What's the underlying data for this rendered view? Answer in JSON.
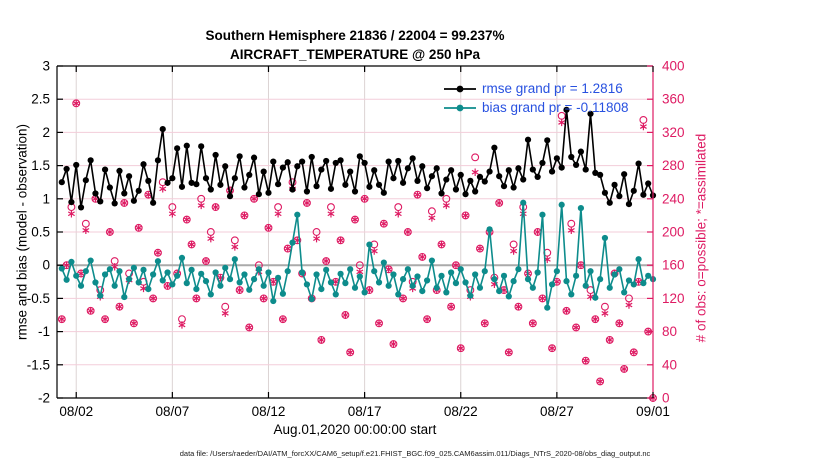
{
  "title": {
    "line1": "Southern Hemisphere 21836 / 22004 = 99.237%",
    "line2": "AIRCRAFT_TEMPERATURE @ 250 hPa"
  },
  "axes": {
    "left_label": "rmse and bias (model - observation)",
    "right_label": "# of obs: o=possible; *=assimilated",
    "x_label": "Aug.01,2020 00:00:00 start"
  },
  "footer": "data file: /Users/raeder/DAI/ATM_forcXX/CAM6_setup/f.e21.FHIST_BGC.f09_025.CAM6assim.011/Diags_NTrS_2020-08/obs_diag_output.nc",
  "colors": {
    "rmse": "#000000",
    "bias": "#0d8c8c",
    "obs": "#de1b63",
    "legend_text": "#2851e0",
    "right_axis": "#de1b63",
    "zero_line": "#aaaaaa",
    "grid_horizontal": "#f3cdda",
    "grid_vertical": "#dcd4d4",
    "frame": "#000000"
  },
  "chart_data": {
    "type": "line",
    "title": "Southern Hemisphere 21836 / 22004 = 99.237%  |  AIRCRAFT_TEMPERATURE @ 250 hPa",
    "xlabel": "Aug.01,2020 00:00:00 start",
    "ylabel_left": "rmse and bias (model - observation)",
    "ylabel_right": "# of obs: o=possible; *=assimilated",
    "x_unit": "day of August 2020 (32 = Sep 1), points every 6 h",
    "xlim": [
      1,
      32
    ],
    "x_start_day": 1.25,
    "x_step_days": 0.25,
    "xticks": [
      {
        "day": 2,
        "label": "08/02"
      },
      {
        "day": 7,
        "label": "08/07"
      },
      {
        "day": 12,
        "label": "08/12"
      },
      {
        "day": 17,
        "label": "08/17"
      },
      {
        "day": 22,
        "label": "08/22"
      },
      {
        "day": 27,
        "label": "08/27"
      },
      {
        "day": 32,
        "label": "09/01"
      }
    ],
    "left_ylim": [
      -2,
      3
    ],
    "left_yticks": [
      3,
      2.5,
      2,
      1.5,
      1,
      0.5,
      0,
      -0.5,
      -1,
      -1.5,
      -2
    ],
    "right_ylim": [
      0,
      400
    ],
    "right_yticks": [
      0,
      40,
      80,
      120,
      160,
      200,
      240,
      280,
      320,
      360,
      400
    ],
    "grid": true,
    "legend_position": "upper-right-inside",
    "series": [
      {
        "name": "rmse",
        "legend": "rmse grand pr = 1.2816",
        "color": "#000000",
        "axis": "left",
        "marker": "filled-circle",
        "values": [
          1.25,
          1.45,
          0.95,
          1.51,
          0.87,
          1.28,
          1.58,
          1.08,
          0.96,
          1.44,
          1.17,
          0.93,
          1.42,
          1.08,
          1.34,
          0.97,
          1.12,
          1.52,
          1.27,
          0.94,
          1.58,
          2.05,
          1.24,
          1.31,
          1.76,
          1.18,
          1.8,
          1.24,
          1.22,
          1.79,
          1.31,
          1.14,
          1.66,
          1.21,
          1.49,
          1.04,
          1.31,
          1.64,
          1.17,
          1.36,
          1.62,
          1.07,
          1.41,
          1.09,
          1.56,
          1.22,
          1.47,
          1.55,
          1.14,
          1.49,
          1.56,
          1.11,
          1.63,
          1.19,
          1.44,
          1.57,
          1.15,
          1.54,
          1.58,
          1.21,
          1.41,
          1.11,
          1.64,
          1.54,
          1.18,
          1.43,
          1.21,
          1.09,
          1.56,
          1.31,
          1.57,
          1.24,
          1.46,
          1.61,
          1.27,
          1.49,
          1.16,
          1.34,
          1.46,
          1.08,
          1.29,
          1.43,
          1.14,
          1.36,
          1.07,
          1.27,
          1.11,
          1.33,
          1.26,
          1.41,
          1.77,
          1.34,
          1.19,
          1.43,
          1.17,
          1.46,
          1.29,
          1.89,
          1.44,
          1.33,
          1.54,
          1.88,
          1.41,
          1.61,
          1.47,
          2.34,
          1.63,
          1.51,
          1.71,
          1.44,
          2.28,
          1.39,
          1.36,
          1.09,
          0.94,
          1.21,
          1.04,
          1.37,
          0.92,
          1.12,
          1.53,
          1.06,
          1.23,
          1.05
        ]
      },
      {
        "name": "bias",
        "legend": "bias grand pr = -0.11808",
        "color": "#0d8c8c",
        "axis": "left",
        "marker": "filled-circle",
        "values": [
          -0.05,
          -0.22,
          0.05,
          -0.16,
          -0.31,
          -0.09,
          0.07,
          -0.26,
          -0.46,
          -0.14,
          -0.06,
          -0.31,
          -0.09,
          -0.48,
          -0.21,
          -0.04,
          -0.26,
          -0.07,
          -0.36,
          -0.14,
          0.06,
          -0.23,
          -0.11,
          -0.29,
          -0.16,
          0.11,
          -0.27,
          -0.07,
          -0.36,
          -0.13,
          -0.24,
          -0.44,
          -0.11,
          -0.31,
          -0.04,
          -0.21,
          0.09,
          -0.26,
          -0.14,
          -0.37,
          -0.21,
          -0.06,
          -0.31,
          -0.11,
          -0.54,
          -0.19,
          -0.43,
          -0.09,
          0.34,
          0.76,
          -0.11,
          -0.29,
          -0.51,
          -0.14,
          -0.36,
          -0.07,
          -0.26,
          -0.44,
          -0.13,
          -0.27,
          -0.06,
          -0.34,
          -0.17,
          -0.41,
          0.31,
          -0.09,
          -0.26,
          0.04,
          -0.31,
          -0.14,
          -0.44,
          -0.21,
          -0.06,
          -0.31,
          -0.17,
          -0.39,
          -0.23,
          0.07,
          -0.34,
          -0.16,
          -0.41,
          -0.11,
          -0.27,
          -0.06,
          -0.26,
          -0.46,
          -0.14,
          -0.34,
          -0.09,
          0.54,
          -0.21,
          -0.39,
          -0.16,
          -0.47,
          -0.24,
          -0.06,
          0.94,
          -0.21,
          -0.34,
          -0.11,
          0.76,
          -0.64,
          -0.29,
          -0.09,
          0.91,
          -0.24,
          -0.44,
          -0.16,
          0.86,
          -0.31,
          -0.09,
          -0.49,
          -0.21,
          0.41,
          -0.34,
          -0.14,
          -0.06,
          -0.41,
          -0.23,
          -0.29,
          0.09,
          -0.27,
          -0.16,
          -0.21
        ]
      },
      {
        "name": "possible_obs",
        "legend": "o=possible",
        "color": "#de1b63",
        "axis": "right",
        "marker": "open-circle",
        "values": [
          95,
          160,
          230,
          355,
          150,
          210,
          105,
          240,
          130,
          95,
          200,
          165,
          110,
          235,
          150,
          90,
          205,
          140,
          245,
          120,
          175,
          260,
          135,
          230,
          150,
          95,
          215,
          185,
          120,
          240,
          165,
          200,
          230,
          145,
          110,
          250,
          190,
          130,
          220,
          85,
          240,
          160,
          120,
          205,
          140,
          230,
          95,
          180,
          260,
          190,
          150,
          235,
          120,
          200,
          70,
          165,
          230,
          140,
          190,
          100,
          55,
          215,
          160,
          240,
          130,
          185,
          90,
          210,
          155,
          65,
          230,
          120,
          200,
          140,
          245,
          170,
          95,
          225,
          130,
          185,
          240,
          110,
          160,
          60,
          220,
          130,
          290,
          180,
          90,
          200,
          145,
          235,
          130,
          55,
          185,
          110,
          230,
          150,
          90,
          200,
          120,
          175,
          60,
          140,
          340,
          105,
          210,
          85,
          160,
          45,
          130,
          95,
          20,
          110,
          70,
          150,
          90,
          35,
          120,
          55,
          140,
          335,
          80,
          0
        ]
      },
      {
        "name": "assimilated_obs",
        "legend": "*=assimilated",
        "color": "#de1b63",
        "axis": "right",
        "marker": "asterisk",
        "values": [
          95,
          160,
          222,
          355,
          150,
          202,
          105,
          240,
          122,
          95,
          200,
          158,
          110,
          235,
          142,
          90,
          205,
          132,
          245,
          120,
          175,
          252,
          135,
          222,
          150,
          88,
          215,
          185,
          120,
          232,
          165,
          192,
          230,
          145,
          102,
          250,
          182,
          130,
          220,
          85,
          240,
          152,
          120,
          205,
          140,
          222,
          95,
          180,
          252,
          190,
          150,
          235,
          120,
          192,
          70,
          165,
          222,
          140,
          190,
          100,
          55,
          215,
          152,
          240,
          130,
          177,
          90,
          210,
          155,
          65,
          222,
          120,
          200,
          132,
          245,
          170,
          95,
          217,
          130,
          185,
          232,
          110,
          160,
          60,
          220,
          122,
          272,
          180,
          90,
          200,
          137,
          235,
          130,
          55,
          177,
          110,
          222,
          150,
          90,
          200,
          120,
          167,
          60,
          140,
          332,
          105,
          202,
          85,
          160,
          45,
          122,
          95,
          20,
          102,
          70,
          150,
          90,
          35,
          112,
          55,
          140,
          327,
          80,
          0
        ]
      }
    ]
  }
}
